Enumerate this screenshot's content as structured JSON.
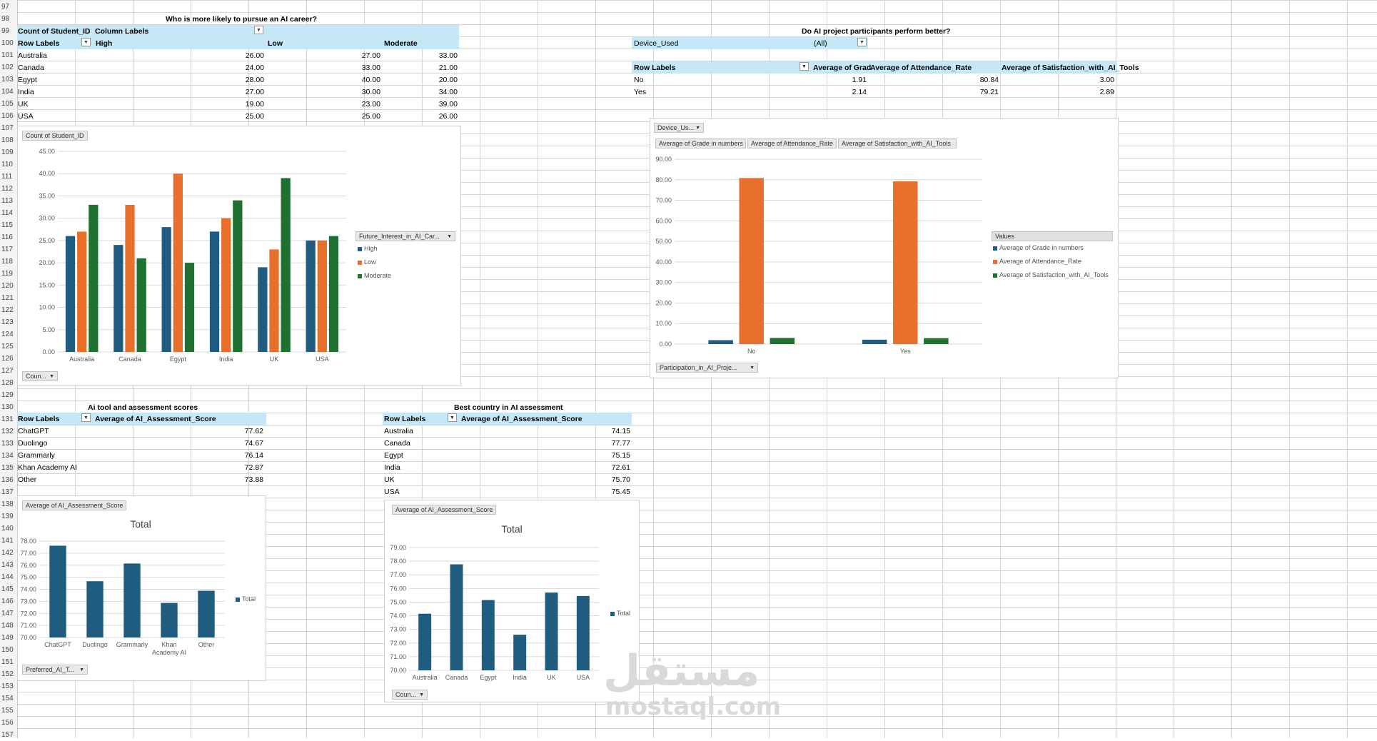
{
  "row_numbers": [
    "97",
    "98",
    "99",
    "100",
    "101",
    "102",
    "103",
    "104",
    "105",
    "106",
    "107",
    "108",
    "109",
    "110",
    "111",
    "112",
    "113",
    "114",
    "115",
    "116",
    "117",
    "118",
    "119",
    "120",
    "121",
    "122",
    "123",
    "124",
    "125",
    "126",
    "127",
    "128",
    "129",
    "130",
    "131",
    "132",
    "133",
    "134",
    "135",
    "136",
    "137",
    "138",
    "139",
    "140",
    "141",
    "142",
    "143",
    "144",
    "145",
    "146",
    "147",
    "148",
    "149",
    "150",
    "151",
    "152",
    "153",
    "154",
    "155",
    "156",
    "157"
  ],
  "pivot1": {
    "title": "Who is more likely to pursue an AI career?",
    "corner": "Count of Student_ID",
    "col_labels": "Column Labels",
    "row_labels": "Row Labels",
    "col_headers": [
      "High",
      "Low",
      "Moderate"
    ],
    "rows": [
      {
        "label": "Australia",
        "values": [
          "26.00",
          "27.00",
          "33.00"
        ]
      },
      {
        "label": "Canada",
        "values": [
          "24.00",
          "33.00",
          "21.00"
        ]
      },
      {
        "label": "Egypt",
        "values": [
          "28.00",
          "40.00",
          "20.00"
        ]
      },
      {
        "label": "India",
        "values": [
          "27.00",
          "30.00",
          "34.00"
        ]
      },
      {
        "label": "UK",
        "values": [
          "19.00",
          "23.00",
          "39.00"
        ]
      },
      {
        "label": "USA",
        "values": [
          "25.00",
          "25.00",
          "26.00"
        ]
      }
    ]
  },
  "pivot2": {
    "title": "Do AI project participants perform better?",
    "filter_label": "Device_Used",
    "filter_value": "(All)",
    "row_labels": "Row Labels",
    "col_headers": [
      "Average of Grad",
      "Average of Attendance_Rate",
      "Average of Satisfaction_with_AI_Tools"
    ],
    "rows": [
      {
        "label": "No",
        "values": [
          "1.91",
          "80.84",
          "3.00"
        ]
      },
      {
        "label": "Yes",
        "values": [
          "2.14",
          "79.21",
          "2.89"
        ]
      }
    ]
  },
  "pivot3": {
    "title": "Ai tool and assessment scores",
    "row_labels": "Row Labels",
    "value_header": "Average of AI_Assessment_Score",
    "rows": [
      {
        "label": "ChatGPT",
        "value": "77.62"
      },
      {
        "label": "Duolingo",
        "value": "74.67"
      },
      {
        "label": "Grammarly",
        "value": "76.14"
      },
      {
        "label": "Khan Academy AI",
        "value": "72.87"
      },
      {
        "label": "Other",
        "value": "73.88"
      }
    ]
  },
  "pivot4": {
    "title": "Best country in AI assessment",
    "row_labels": "Row Labels",
    "value_header": "Average of AI_Assessment_Score",
    "rows": [
      {
        "label": "Australia",
        "value": "74.15"
      },
      {
        "label": "Canada",
        "value": "77.77"
      },
      {
        "label": "Egypt",
        "value": "75.15"
      },
      {
        "label": "India",
        "value": "72.61"
      },
      {
        "label": "UK",
        "value": "75.70"
      },
      {
        "label": "USA",
        "value": "75.45"
      }
    ]
  },
  "chart_data": [
    {
      "id": "c1",
      "type": "bar",
      "title": "",
      "value_button": "Count of Student_ID",
      "axis_button": "Coun...",
      "legend_button": "Future_Interest_in_AI_Car...",
      "categories": [
        "Australia",
        "Canada",
        "Egypt",
        "India",
        "UK",
        "USA"
      ],
      "series": [
        {
          "name": "High",
          "color": "#1f5c80",
          "values": [
            26,
            24,
            28,
            27,
            19,
            25
          ]
        },
        {
          "name": "Low",
          "color": "#e8702a",
          "values": [
            27,
            33,
            40,
            30,
            23,
            25
          ]
        },
        {
          "name": "Moderate",
          "color": "#1e7130",
          "values": [
            33,
            21,
            20,
            34,
            39,
            26
          ]
        }
      ],
      "ylim": [
        0,
        45
      ],
      "yticks": [
        "0.00",
        "5.00",
        "10.00",
        "15.00",
        "20.00",
        "25.00",
        "30.00",
        "35.00",
        "40.00",
        "45.00"
      ],
      "legend_position": "right",
      "grid": true
    },
    {
      "id": "c2",
      "type": "bar",
      "title": "",
      "filter_button": "Device_Us...",
      "value_buttons": [
        "Average of Grade in numbers",
        "Average of Attendance_Rate",
        "Average of Satisfaction_with_AI_Tools"
      ],
      "axis_button": "Participation_in_AI_Proje...",
      "legend_title": "Values",
      "categories": [
        "No",
        "Yes"
      ],
      "series": [
        {
          "name": "Average of Grade in numbers",
          "color": "#1f5c80",
          "values": [
            1.91,
            2.14
          ]
        },
        {
          "name": "Average of Attendance_Rate",
          "color": "#e8702a",
          "values": [
            80.84,
            79.21
          ]
        },
        {
          "name": "Average of Satisfaction_with_AI_Tools",
          "color": "#1e7130",
          "values": [
            3.0,
            2.89
          ]
        }
      ],
      "ylim": [
        0,
        90
      ],
      "yticks": [
        "0.00",
        "10.00",
        "20.00",
        "30.00",
        "40.00",
        "50.00",
        "60.00",
        "70.00",
        "80.00",
        "90.00"
      ],
      "legend_position": "right",
      "grid": true
    },
    {
      "id": "c3",
      "type": "bar",
      "title": "Total",
      "value_button": "Average of AI_Assessment_Score",
      "axis_button": "Preferred_AI_T...",
      "categories": [
        "ChatGPT",
        "Duolingo",
        "Grammarly",
        "Khan Academy AI",
        "Other"
      ],
      "series": [
        {
          "name": "Total",
          "color": "#1f5c80",
          "values": [
            77.62,
            74.67,
            76.14,
            72.87,
            73.88
          ]
        }
      ],
      "ylim": [
        70,
        78
      ],
      "yticks": [
        "70.00",
        "71.00",
        "72.00",
        "73.00",
        "74.00",
        "75.00",
        "76.00",
        "77.00",
        "78.00"
      ],
      "legend_position": "right",
      "grid": true
    },
    {
      "id": "c4",
      "type": "bar",
      "title": "Total",
      "value_button": "Average of AI_Assessment_Score",
      "axis_button": "Coun...",
      "categories": [
        "Australia",
        "Canada",
        "Egypt",
        "India",
        "UK",
        "USA"
      ],
      "series": [
        {
          "name": "Total",
          "color": "#1f5c80",
          "values": [
            74.15,
            77.77,
            75.15,
            72.61,
            75.7,
            75.45
          ]
        }
      ],
      "ylim": [
        70,
        79
      ],
      "yticks": [
        "70.00",
        "71.00",
        "72.00",
        "73.00",
        "74.00",
        "75.00",
        "76.00",
        "77.00",
        "78.00",
        "79.00"
      ],
      "legend_position": "right",
      "grid": true
    }
  ],
  "watermark": {
    "logo": "مستقل",
    "url": "mostaql.com"
  }
}
